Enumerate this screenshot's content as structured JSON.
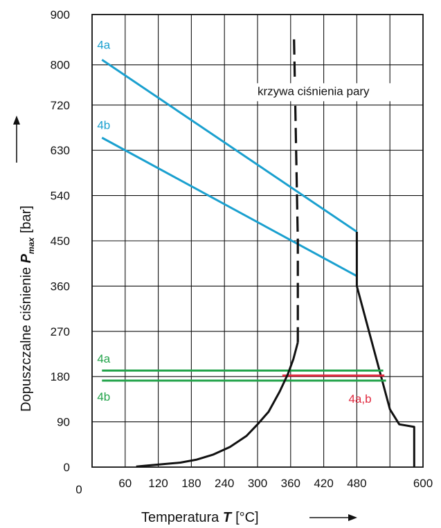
{
  "chart_data": {
    "type": "line",
    "xlabel": {
      "prefix": "Temperatura ",
      "symbol": "T",
      "unit": "[°C]"
    },
    "ylabel": {
      "prefix": "Dopuszczalne ciśnienie ",
      "symbol": "P",
      "subscript": "max",
      "unit": "[bar]"
    },
    "xlim": [
      0,
      600
    ],
    "ylim": [
      0,
      900
    ],
    "x_ticks": [
      0,
      60,
      120,
      180,
      240,
      300,
      360,
      420,
      480,
      600
    ],
    "y_ticks": [
      0,
      90,
      180,
      270,
      360,
      450,
      540,
      630,
      720,
      800,
      900
    ],
    "grid": true,
    "colors": {
      "blue": "#1aa0cf",
      "green": "#22a34a",
      "red": "#e0273d",
      "black": "#111111"
    },
    "series": [
      {
        "name": "4a",
        "color": "#1aa0cf",
        "x": [
          18,
          480
        ],
        "y": [
          810,
          468
        ]
      },
      {
        "name": "4b",
        "color": "#1aa0cf",
        "x": [
          18,
          480
        ],
        "y": [
          655,
          380
        ]
      },
      {
        "name": "",
        "color": "#111111",
        "x": [
          480,
          480,
          540,
          557,
          584,
          584
        ],
        "y": [
          468,
          360,
          115,
          85,
          80,
          0
        ]
      },
      {
        "name": "4a",
        "color": "#22a34a",
        "x": [
          18,
          528
        ],
        "y": [
          192,
          192
        ]
      },
      {
        "name": "4b",
        "color": "#22a34a",
        "x": [
          18,
          533
        ],
        "y": [
          172,
          172
        ]
      },
      {
        "name": "4a,b",
        "color": "#e0273d",
        "x": [
          345,
          530
        ],
        "y": [
          182,
          182
        ]
      },
      {
        "name": "krzywa ciśnienia pary",
        "color": "#111111",
        "x": [
          80,
          100,
          130,
          160,
          190,
          220,
          250,
          280,
          300,
          320,
          340,
          355,
          365,
          373
        ],
        "y": [
          1,
          3,
          6,
          9,
          15,
          25,
          40,
          62,
          85,
          110,
          150,
          185,
          215,
          248
        ]
      },
      {
        "name": "krzywa ciśnienia pary",
        "color": "#111111",
        "dashed": true,
        "x": [
          373,
          373,
          366
        ],
        "y": [
          248,
          450,
          860
        ]
      }
    ],
    "annotations": [
      {
        "text": "4a",
        "color": "#1aa0cf",
        "x": 18,
        "y": 832
      },
      {
        "text": "4b",
        "color": "#1aa0cf",
        "x": 18,
        "y": 672
      },
      {
        "text": "krzywa ciśnienia pary",
        "color": "#111111",
        "x": 300,
        "y": 740
      },
      {
        "text": "4a",
        "color": "#22a34a",
        "x": 18,
        "y": 208
      },
      {
        "text": "4b",
        "color": "#22a34a",
        "x": 18,
        "y": 132
      },
      {
        "text": "4a,b",
        "color": "#e0273d",
        "x": 465,
        "y": 128
      }
    ]
  }
}
